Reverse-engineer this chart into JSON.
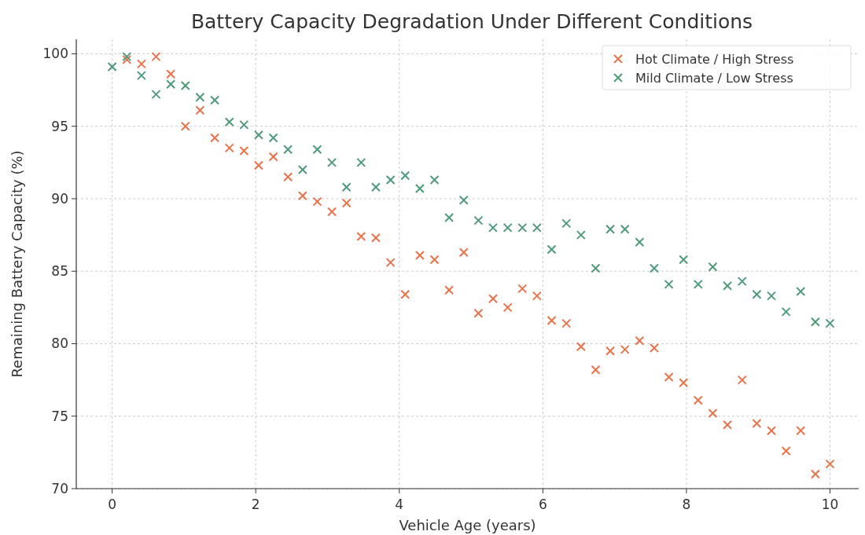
{
  "chart_data": {
    "type": "scatter",
    "title": "Battery Capacity Degradation Under Different Conditions",
    "xlabel": "Vehicle Age (years)",
    "ylabel": "Remaining Battery Capacity (%)",
    "xlim": [
      -0.5,
      10.4
    ],
    "ylim": [
      70,
      101
    ],
    "xticks": [
      0,
      2,
      4,
      6,
      8,
      10
    ],
    "yticks": [
      70,
      75,
      80,
      85,
      90,
      95,
      100
    ],
    "grid": true,
    "legend": "top right",
    "marker": "cross",
    "series": [
      {
        "name": "Hot Climate / High Stress",
        "color": "#e8734a",
        "x": [
          0.204,
          0.408,
          0.612,
          0.816,
          1.02,
          1.224,
          1.429,
          1.633,
          1.837,
          2.041,
          2.245,
          2.449,
          2.653,
          2.857,
          3.061,
          3.265,
          3.469,
          3.673,
          3.878,
          4.082,
          4.286,
          4.49,
          4.694,
          4.898,
          5.102,
          5.306,
          5.51,
          5.714,
          5.918,
          6.122,
          6.327,
          6.531,
          6.735,
          6.939,
          7.143,
          7.347,
          7.551,
          7.755,
          7.959,
          8.163,
          8.367,
          8.571,
          8.776,
          8.98,
          9.184,
          9.388,
          9.592,
          9.796,
          10
        ],
        "values": [
          99.6,
          99.3,
          99.8,
          98.6,
          95.0,
          96.1,
          94.2,
          93.5,
          93.3,
          92.3,
          92.9,
          91.5,
          90.2,
          89.8,
          89.1,
          89.7,
          87.4,
          87.3,
          85.6,
          83.4,
          86.1,
          85.8,
          83.7,
          86.3,
          82.1,
          83.1,
          82.5,
          83.8,
          83.3,
          81.6,
          81.4,
          79.8,
          78.2,
          79.5,
          79.6,
          80.2,
          79.7,
          77.7,
          77.3,
          76.1,
          75.2,
          74.4,
          77.5,
          74.5,
          74.0,
          72.6,
          74.0,
          71.0,
          71.7
        ]
      },
      {
        "name": "Mild Climate / Low Stress",
        "color": "#4e9a7a",
        "x": [
          0,
          0.204,
          0.408,
          0.612,
          0.816,
          1.02,
          1.224,
          1.429,
          1.633,
          1.837,
          2.041,
          2.245,
          2.449,
          2.653,
          2.857,
          3.061,
          3.265,
          3.469,
          3.673,
          3.878,
          4.082,
          4.286,
          4.49,
          4.694,
          4.898,
          5.102,
          5.306,
          5.51,
          5.714,
          5.918,
          6.122,
          6.327,
          6.531,
          6.735,
          6.939,
          7.143,
          7.347,
          7.551,
          7.755,
          7.959,
          8.163,
          8.367,
          8.571,
          8.776,
          8.98,
          9.184,
          9.388,
          9.592,
          9.796,
          10
        ],
        "values": [
          99.1,
          99.8,
          98.5,
          97.2,
          97.9,
          97.8,
          97.0,
          96.8,
          95.3,
          95.1,
          94.4,
          94.2,
          93.4,
          92.0,
          93.4,
          92.5,
          90.8,
          92.5,
          90.8,
          91.3,
          91.6,
          90.7,
          91.3,
          88.7,
          89.9,
          88.5,
          88.0,
          88.0,
          88.0,
          88.0,
          86.5,
          88.3,
          87.5,
          85.2,
          87.9,
          87.9,
          87.0,
          85.2,
          84.1,
          85.8,
          84.1,
          85.3,
          84.0,
          84.3,
          83.4,
          83.3,
          82.2,
          83.6,
          81.5,
          81.4
        ]
      }
    ]
  }
}
